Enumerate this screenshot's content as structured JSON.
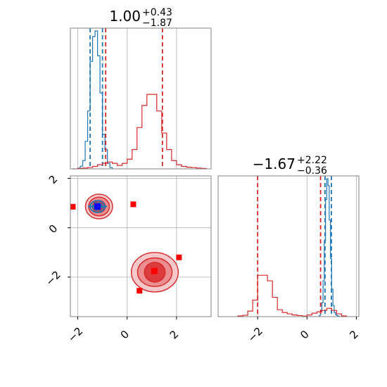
{
  "chart_data": {
    "type": "corner",
    "colors": {
      "blue": "#1f77b4",
      "red": "#d62728",
      "grid": "#b0b0b0",
      "axes": "#808080"
    },
    "panels": [
      {
        "id": "hist-x",
        "type": "histogram",
        "title": {
          "base": "1.00",
          "sup": "+0.43",
          "sub": "−1.87"
        },
        "xlim": [
          -2.3,
          3.4
        ],
        "grid_x": [
          -2,
          0,
          2
        ],
        "series": [
          {
            "name": "blue",
            "color": "#1f77b4",
            "bins": [
              -2.0,
              -1.9,
              -1.8,
              -1.7,
              -1.6,
              -1.5,
              -1.4,
              -1.3,
              -1.2,
              -1.1,
              -1.0,
              -0.9,
              -0.8,
              -0.7
            ],
            "counts": [
              0.005,
              0.02,
              0.06,
              0.2,
              0.42,
              0.78,
              0.96,
              1.0,
              0.82,
              0.55,
              0.25,
              0.14,
              0.04,
              0.01
            ],
            "quantiles": [
              -1.5,
              -1.0
            ]
          },
          {
            "name": "red",
            "color": "#d62728",
            "bins": [
              -2.2,
              -2.0,
              -1.8,
              -1.6,
              -1.4,
              -1.2,
              -1.0,
              -0.8,
              -0.6,
              -0.4,
              -0.2,
              0.0,
              0.2,
              0.4,
              0.6,
              0.8,
              1.0,
              1.2,
              1.4,
              1.6,
              1.8,
              2.0,
              2.2,
              2.4,
              2.6,
              2.8,
              3.0
            ],
            "counts": [
              0.0,
              0.003,
              0.006,
              0.01,
              0.018,
              0.03,
              0.04,
              0.05,
              0.04,
              0.025,
              0.04,
              0.07,
              0.14,
              0.3,
              0.46,
              0.54,
              0.54,
              0.42,
              0.26,
              0.14,
              0.06,
              0.03,
              0.018,
              0.012,
              0.01,
              0.006,
              0.003
            ],
            "quantiles": [
              -0.87,
              1.43
            ]
          }
        ]
      },
      {
        "id": "scatter-2d",
        "type": "contour",
        "xlim": [
          -2.3,
          3.4
        ],
        "ylim": [
          -3.6,
          2.1
        ],
        "xticks": [
          -2,
          0,
          2
        ],
        "yticks": [
          -2,
          0,
          2
        ],
        "red_blobs": [
          {
            "cx": -1.14,
            "cy": 0.86,
            "levels": [
              [
                0.55,
                0.5
              ],
              [
                0.42,
                0.38
              ],
              [
                0.26,
                0.24
              ]
            ]
          },
          {
            "cx": 1.12,
            "cy": -1.8,
            "levels": [
              [
                0.95,
                0.8
              ],
              [
                0.7,
                0.58
              ],
              [
                0.42,
                0.4
              ]
            ]
          }
        ],
        "blue_blob": {
          "cx": -1.2,
          "cy": 0.86,
          "levels": [
            [
              0.3,
              0.24
            ],
            [
              0.2,
              0.16
            ],
            [
              0.1,
              0.08
            ]
          ]
        },
        "red_points": [
          [
            0.25,
            0.95
          ],
          [
            2.1,
            -1.2
          ],
          [
            0.5,
            -2.55
          ],
          [
            -2.2,
            0.85
          ]
        ],
        "red_markers": [
          [
            1.1,
            -1.75
          ]
        ],
        "blue_markers": [
          [
            -1.2,
            0.86
          ]
        ],
        "blue_hline": 0.86
      },
      {
        "id": "hist-y",
        "type": "histogram",
        "title": {
          "base": "−1.67",
          "sup": "+2.22",
          "sub": "−0.36"
        },
        "xlim": [
          -3.6,
          2.1
        ],
        "xticks": [
          -2,
          0,
          2
        ],
        "grid_x": [
          -2,
          0,
          2
        ],
        "series": [
          {
            "name": "blue",
            "color": "#1f77b4",
            "bins": [
              0.5,
              0.55,
              0.6,
              0.65,
              0.7,
              0.75,
              0.8,
              0.85,
              0.9,
              0.95,
              1.0,
              1.05,
              1.1,
              1.15,
              1.2,
              1.25
            ],
            "counts": [
              0.01,
              0.04,
              0.1,
              0.26,
              0.55,
              0.85,
              1.0,
              0.95,
              0.7,
              0.42,
              0.2,
              0.08,
              0.03,
              0.015,
              0.008,
              0.003
            ],
            "quantiles": [
              0.73,
              0.99
            ]
          },
          {
            "name": "red",
            "color": "#d62728",
            "bins": [
              -2.8,
              -2.6,
              -2.4,
              -2.2,
              -2.0,
              -1.8,
              -1.6,
              -1.4,
              -1.2,
              -1.0,
              -0.8,
              -0.6,
              -0.4,
              -0.2,
              0.0,
              0.2,
              0.4,
              0.6,
              0.8,
              1.0,
              1.2,
              1.4
            ],
            "counts": [
              0.005,
              0.01,
              0.04,
              0.12,
              0.3,
              0.3,
              0.26,
              0.14,
              0.05,
              0.03,
              0.02,
              0.012,
              0.008,
              0.004,
              0.012,
              0.025,
              0.035,
              0.045,
              0.06,
              0.045,
              0.02,
              0.005
            ],
            "quantiles": [
              -2.0,
              0.55
            ]
          }
        ]
      }
    ]
  }
}
